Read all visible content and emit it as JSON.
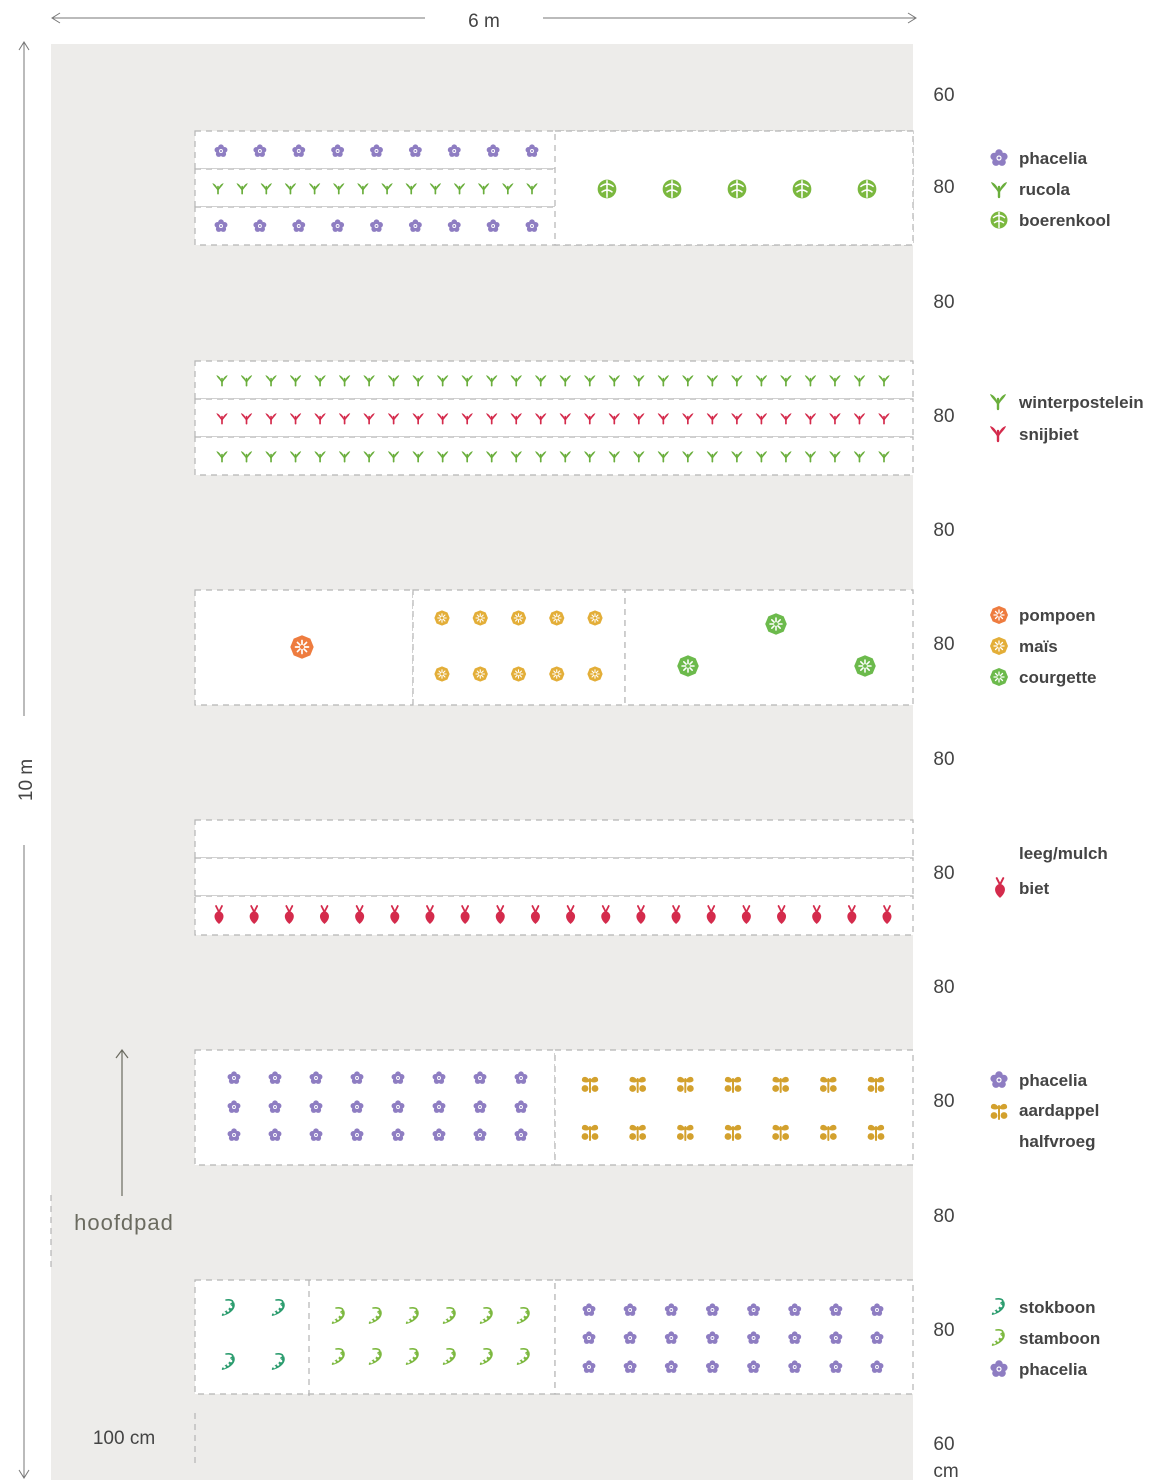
{
  "dimensions": {
    "width_label": "6 m",
    "height_label": "10 m",
    "path_width_label": "100 cm",
    "spacing_labels": [
      "60",
      "80",
      "80",
      "80",
      "80",
      "80",
      "80",
      "80",
      "80",
      "80",
      "80",
      "80",
      "60"
    ],
    "unit_label": "cm"
  },
  "main_path_label": "hoofdpad",
  "colors": {
    "phacelia": "#8e7dc2",
    "rucola": "#6aae3c",
    "boerenkool": "#7bb83f",
    "winterpostelein": "#6aae3c",
    "snijbiet": "#d42b4c",
    "pompoen": "#ee7c3f",
    "mais": "#e3ae38",
    "courgette": "#6cba4c",
    "biet": "#d42b4c",
    "aardappel": "#d3a12e",
    "stokboon": "#2b9c6e",
    "stamboon": "#7cb83f",
    "bed_border": "#b5b5b5",
    "ground": "#edecea"
  },
  "beds": [
    {
      "legend": [
        {
          "icon": "phacelia-icon",
          "label": "phacelia"
        },
        {
          "icon": "rucola-icon",
          "label": "rucola"
        },
        {
          "icon": "boerenkool-icon",
          "label": "boerenkool"
        }
      ]
    },
    {
      "legend": [
        {
          "icon": "winterpostelein-icon",
          "label": "winterpostelein"
        },
        {
          "icon": "snijbiet-icon",
          "label": "snijbiet"
        }
      ]
    },
    {
      "legend": [
        {
          "icon": "pompoen-icon",
          "label": "pompoen"
        },
        {
          "icon": "mais-icon",
          "label": "maïs"
        },
        {
          "icon": "courgette-icon",
          "label": "courgette"
        }
      ]
    },
    {
      "legend": [
        {
          "icon": "",
          "label": "leeg/mulch"
        },
        {
          "icon": "biet-icon",
          "label": "biet"
        }
      ]
    },
    {
      "legend": [
        {
          "icon": "phacelia-icon",
          "label": "phacelia"
        },
        {
          "icon": "aardappel-icon",
          "label": "aardappel"
        },
        {
          "icon": "",
          "label": "halfvroeg"
        }
      ]
    },
    {
      "legend": [
        {
          "icon": "stokboon-icon",
          "label": "stokboon"
        },
        {
          "icon": "stamboon-icon",
          "label": "stamboon"
        },
        {
          "icon": "phacelia-icon",
          "label": "phacelia"
        }
      ]
    }
  ]
}
